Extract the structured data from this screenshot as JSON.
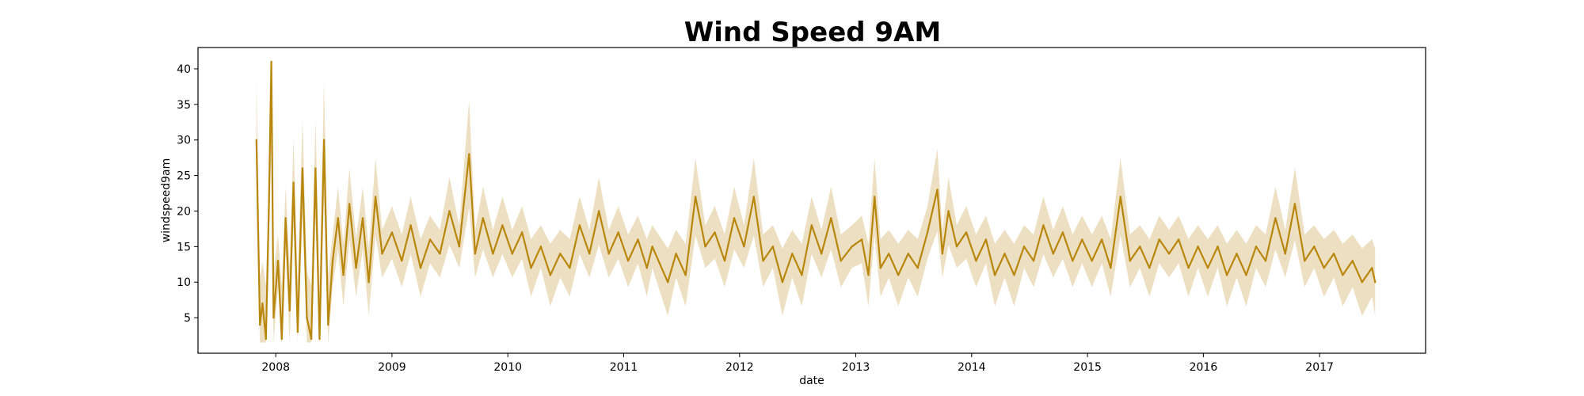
{
  "chart_data": {
    "type": "line",
    "title": "Wind Speed 9AM",
    "xlabel": "date",
    "ylabel": "windspeed9am",
    "xlim": [
      "2007-05-01",
      "2017-12-01"
    ],
    "ylim": [
      0,
      43
    ],
    "x_ticks": [
      "2008",
      "2009",
      "2010",
      "2011",
      "2012",
      "2013",
      "2014",
      "2015",
      "2016",
      "2017"
    ],
    "y_ticks": [
      "5",
      "10",
      "15",
      "20",
      "25",
      "30",
      "35",
      "40"
    ],
    "grid": false,
    "legend": "none",
    "colors": {
      "line": "#b8860b",
      "band": "#ead9b6",
      "frame": "#000000"
    },
    "series": [
      {
        "mean": [
          [
            "2007-11-01",
            30
          ],
          [
            "2007-11-12",
            4
          ],
          [
            "2007-11-20",
            7
          ],
          [
            "2007-12-01",
            2
          ],
          [
            "2007-12-10",
            20
          ],
          [
            "2007-12-18",
            41
          ],
          [
            "2007-12-25",
            5
          ],
          [
            "2008-01-08",
            13
          ],
          [
            "2008-01-20",
            2
          ],
          [
            "2008-02-01",
            19
          ],
          [
            "2008-02-14",
            6
          ],
          [
            "2008-02-26",
            24
          ],
          [
            "2008-03-10",
            3
          ],
          [
            "2008-03-25",
            26
          ],
          [
            "2008-04-08",
            5
          ],
          [
            "2008-04-22",
            2
          ],
          [
            "2008-05-05",
            26
          ],
          [
            "2008-05-18",
            2
          ],
          [
            "2008-06-01",
            30
          ],
          [
            "2008-06-14",
            4
          ],
          [
            "2008-06-28",
            13
          ],
          [
            "2008-07-15",
            19
          ],
          [
            "2008-08-01",
            11
          ],
          [
            "2008-08-20",
            21
          ],
          [
            "2008-09-10",
            12
          ],
          [
            "2008-10-01",
            19
          ],
          [
            "2008-10-20",
            10
          ],
          [
            "2008-11-10",
            22
          ],
          [
            "2008-12-01",
            14
          ],
          [
            "2009-01-01",
            17
          ],
          [
            "2009-02-01",
            13
          ],
          [
            "2009-03-01",
            18
          ],
          [
            "2009-04-01",
            12
          ],
          [
            "2009-05-01",
            16
          ],
          [
            "2009-06-01",
            14
          ],
          [
            "2009-07-01",
            20
          ],
          [
            "2009-08-01",
            15
          ],
          [
            "2009-09-01",
            28
          ],
          [
            "2009-09-20",
            14
          ],
          [
            "2009-10-15",
            19
          ],
          [
            "2009-11-15",
            14
          ],
          [
            "2009-12-15",
            18
          ],
          [
            "2010-01-15",
            14
          ],
          [
            "2010-02-15",
            17
          ],
          [
            "2010-03-15",
            12
          ],
          [
            "2010-04-15",
            15
          ],
          [
            "2010-05-15",
            11
          ],
          [
            "2010-06-15",
            14
          ],
          [
            "2010-07-15",
            12
          ],
          [
            "2010-08-15",
            18
          ],
          [
            "2010-09-15",
            14
          ],
          [
            "2010-10-15",
            20
          ],
          [
            "2010-11-15",
            14
          ],
          [
            "2010-12-15",
            17
          ],
          [
            "2011-01-15",
            13
          ],
          [
            "2011-02-15",
            16
          ],
          [
            "2011-03-15",
            12
          ],
          [
            "2011-04-01",
            15
          ],
          [
            "2011-05-20",
            10
          ],
          [
            "2011-06-15",
            14
          ],
          [
            "2011-07-15",
            11
          ],
          [
            "2011-08-15",
            22
          ],
          [
            "2011-09-15",
            15
          ],
          [
            "2011-10-15",
            17
          ],
          [
            "2011-11-15",
            13
          ],
          [
            "2011-12-15",
            19
          ],
          [
            "2012-01-15",
            15
          ],
          [
            "2012-02-15",
            22
          ],
          [
            "2012-03-15",
            13
          ],
          [
            "2012-04-15",
            15
          ],
          [
            "2012-05-15",
            10
          ],
          [
            "2012-06-15",
            14
          ],
          [
            "2012-07-15",
            11
          ],
          [
            "2012-08-15",
            18
          ],
          [
            "2012-09-15",
            14
          ],
          [
            "2012-10-15",
            19
          ],
          [
            "2012-11-15",
            13
          ],
          [
            "2012-12-20",
            15
          ],
          [
            "2013-01-20",
            16
          ],
          [
            "2013-02-10",
            11
          ],
          [
            "2013-03-01",
            22
          ],
          [
            "2013-03-20",
            12
          ],
          [
            "2013-04-15",
            14
          ],
          [
            "2013-05-15",
            11
          ],
          [
            "2013-06-15",
            14
          ],
          [
            "2013-07-15",
            12
          ],
          [
            "2013-08-15",
            17
          ],
          [
            "2013-09-15",
            23
          ],
          [
            "2013-10-01",
            14
          ],
          [
            "2013-10-20",
            20
          ],
          [
            "2013-11-15",
            15
          ],
          [
            "2013-12-15",
            17
          ],
          [
            "2014-01-15",
            13
          ],
          [
            "2014-02-15",
            16
          ],
          [
            "2014-03-15",
            11
          ],
          [
            "2014-04-15",
            14
          ],
          [
            "2014-05-15",
            11
          ],
          [
            "2014-06-15",
            15
          ],
          [
            "2014-07-15",
            13
          ],
          [
            "2014-08-15",
            18
          ],
          [
            "2014-09-15",
            14
          ],
          [
            "2014-10-15",
            17
          ],
          [
            "2014-11-15",
            13
          ],
          [
            "2014-12-15",
            16
          ],
          [
            "2015-01-15",
            13
          ],
          [
            "2015-02-15",
            16
          ],
          [
            "2015-03-15",
            12
          ],
          [
            "2015-04-15",
            22
          ],
          [
            "2015-05-15",
            13
          ],
          [
            "2015-06-15",
            15
          ],
          [
            "2015-07-15",
            12
          ],
          [
            "2015-08-15",
            16
          ],
          [
            "2015-09-15",
            14
          ],
          [
            "2015-10-15",
            16
          ],
          [
            "2015-11-15",
            12
          ],
          [
            "2015-12-15",
            15
          ],
          [
            "2016-01-15",
            12
          ],
          [
            "2016-02-15",
            15
          ],
          [
            "2016-03-15",
            11
          ],
          [
            "2016-04-15",
            14
          ],
          [
            "2016-05-15",
            11
          ],
          [
            "2016-06-15",
            15
          ],
          [
            "2016-07-15",
            13
          ],
          [
            "2016-08-15",
            19
          ],
          [
            "2016-09-15",
            14
          ],
          [
            "2016-10-15",
            21
          ],
          [
            "2016-11-15",
            13
          ],
          [
            "2016-12-15",
            15
          ],
          [
            "2017-01-15",
            12
          ],
          [
            "2017-02-15",
            14
          ],
          [
            "2017-03-15",
            11
          ],
          [
            "2017-04-15",
            13
          ],
          [
            "2017-05-15",
            10
          ],
          [
            "2017-06-15",
            12
          ],
          [
            "2017-06-25",
            10
          ]
        ]
      }
    ]
  }
}
